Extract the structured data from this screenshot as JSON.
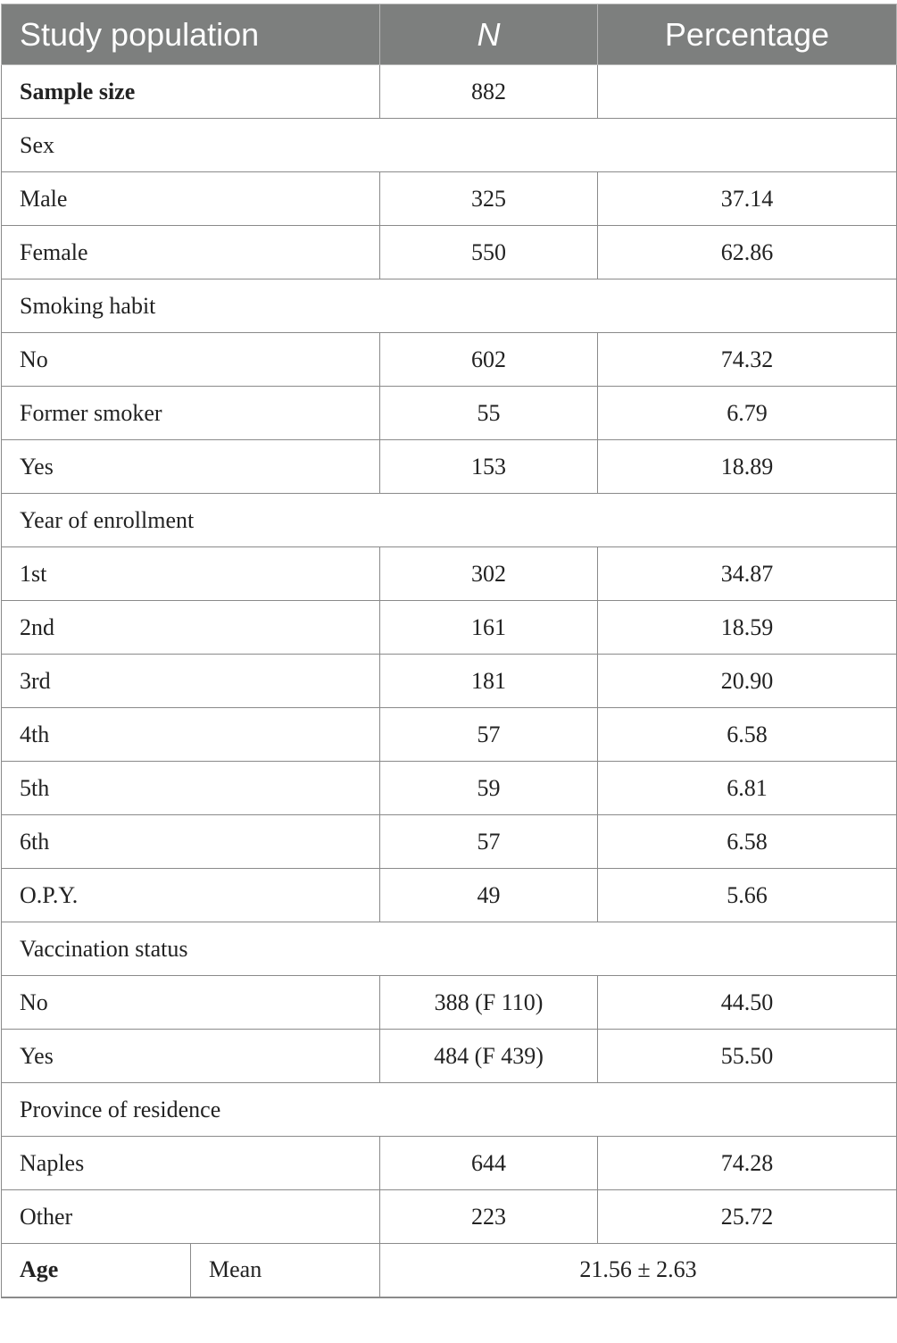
{
  "header": {
    "col1": "Study population",
    "col2": "N",
    "col3": "Percentage"
  },
  "rows": [
    {
      "label": "Sample size",
      "n": "882",
      "pct": "",
      "bold": true,
      "section": false
    },
    {
      "label": "Sex",
      "section": true
    },
    {
      "label": "Male",
      "n": "325",
      "pct": "37.14"
    },
    {
      "label": "Female",
      "n": "550",
      "pct": "62.86"
    },
    {
      "label": "Smoking habit",
      "section": true
    },
    {
      "label": "No",
      "n": "602",
      "pct": "74.32"
    },
    {
      "label": "Former smoker",
      "n": "55",
      "pct": "6.79"
    },
    {
      "label": "Yes",
      "n": "153",
      "pct": "18.89"
    },
    {
      "label": "Year of enrollment",
      "section": true
    },
    {
      "label": "1st",
      "n": "302",
      "pct": "34.87"
    },
    {
      "label": "2nd",
      "n": "161",
      "pct": "18.59"
    },
    {
      "label": "3rd",
      "n": "181",
      "pct": "20.90"
    },
    {
      "label": "4th",
      "n": "57",
      "pct": "6.58"
    },
    {
      "label": "5th",
      "n": "59",
      "pct": "6.81"
    },
    {
      "label": "6th",
      "n": "57",
      "pct": "6.58"
    },
    {
      "label": "O.P.Y.",
      "n": "49",
      "pct": "5.66"
    },
    {
      "label": "Vaccination status",
      "section": true
    },
    {
      "label": "No",
      "n": "388 (F 110)",
      "pct": "44.50"
    },
    {
      "label": "Yes",
      "n": "484 (F 439)",
      "pct": "55.50"
    },
    {
      "label": "Province of residence",
      "section": true
    },
    {
      "label": "Naples",
      "n": "644",
      "pct": "74.28"
    },
    {
      "label": "Other",
      "n": "223",
      "pct": "25.72"
    }
  ],
  "age_row": {
    "label": "Age",
    "sublabel": "Mean",
    "value": "21.56 ± 2.63"
  },
  "colors": {
    "header_bg": "#7d7f7e",
    "header_text": "#ffffff",
    "border": "#8a8a8a"
  }
}
